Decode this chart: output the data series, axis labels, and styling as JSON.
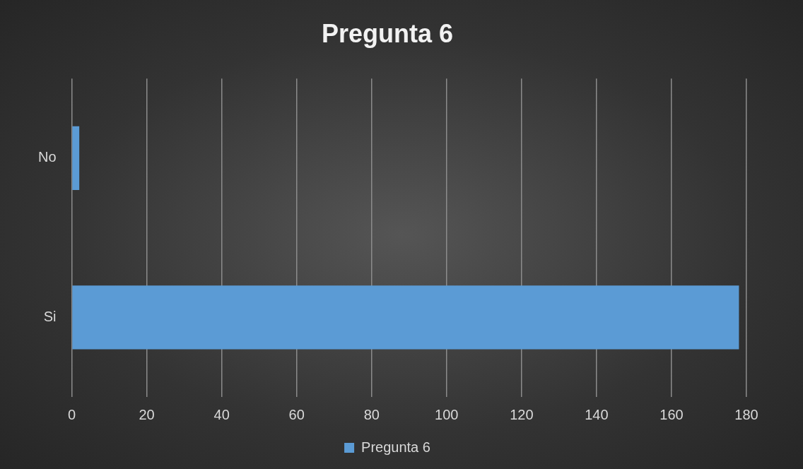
{
  "chart_data": {
    "type": "bar",
    "orientation": "horizontal",
    "title": "Pregunta 6",
    "categories": [
      "No",
      "Si"
    ],
    "series": [
      {
        "name": "Pregunta 6",
        "color": "#5b9bd5",
        "values": [
          2,
          178
        ]
      }
    ],
    "xlim": [
      0,
      180
    ],
    "xticks": [
      0,
      20,
      40,
      60,
      80,
      100,
      120,
      140,
      160,
      180
    ],
    "grid": "x",
    "legend": "bottom"
  }
}
